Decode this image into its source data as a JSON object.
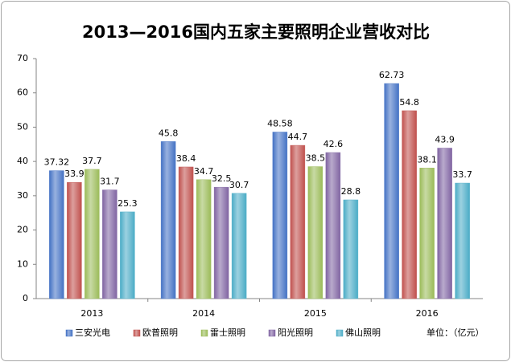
{
  "chart_data": {
    "type": "bar",
    "title": "2013—2016国内五家主要照明企业营收对比",
    "unit_note": "单位：（亿元）",
    "categories": [
      "2013",
      "2014",
      "2015",
      "2016"
    ],
    "series": [
      {
        "name": "三安光电",
        "color": "#4472c4",
        "values": [
          37.32,
          45.8,
          48.58,
          62.73
        ]
      },
      {
        "name": "欧普照明",
        "color": "#c0504d",
        "values": [
          33.9,
          38.4,
          44.7,
          54.8
        ]
      },
      {
        "name": "雷士照明",
        "color": "#9bbb59",
        "values": [
          37.7,
          34.7,
          38.5,
          38.1
        ]
      },
      {
        "name": "阳光照明",
        "color": "#8064a2",
        "values": [
          31.7,
          32.5,
          42.6,
          43.9
        ]
      },
      {
        "name": "佛山照明",
        "color": "#4bacc6",
        "values": [
          25.3,
          30.7,
          28.8,
          33.7
        ]
      }
    ],
    "ylim": [
      0,
      70
    ],
    "yticks": [
      0,
      10,
      20,
      30,
      40,
      50,
      60,
      70
    ],
    "grid": false,
    "legend": "bottom"
  }
}
